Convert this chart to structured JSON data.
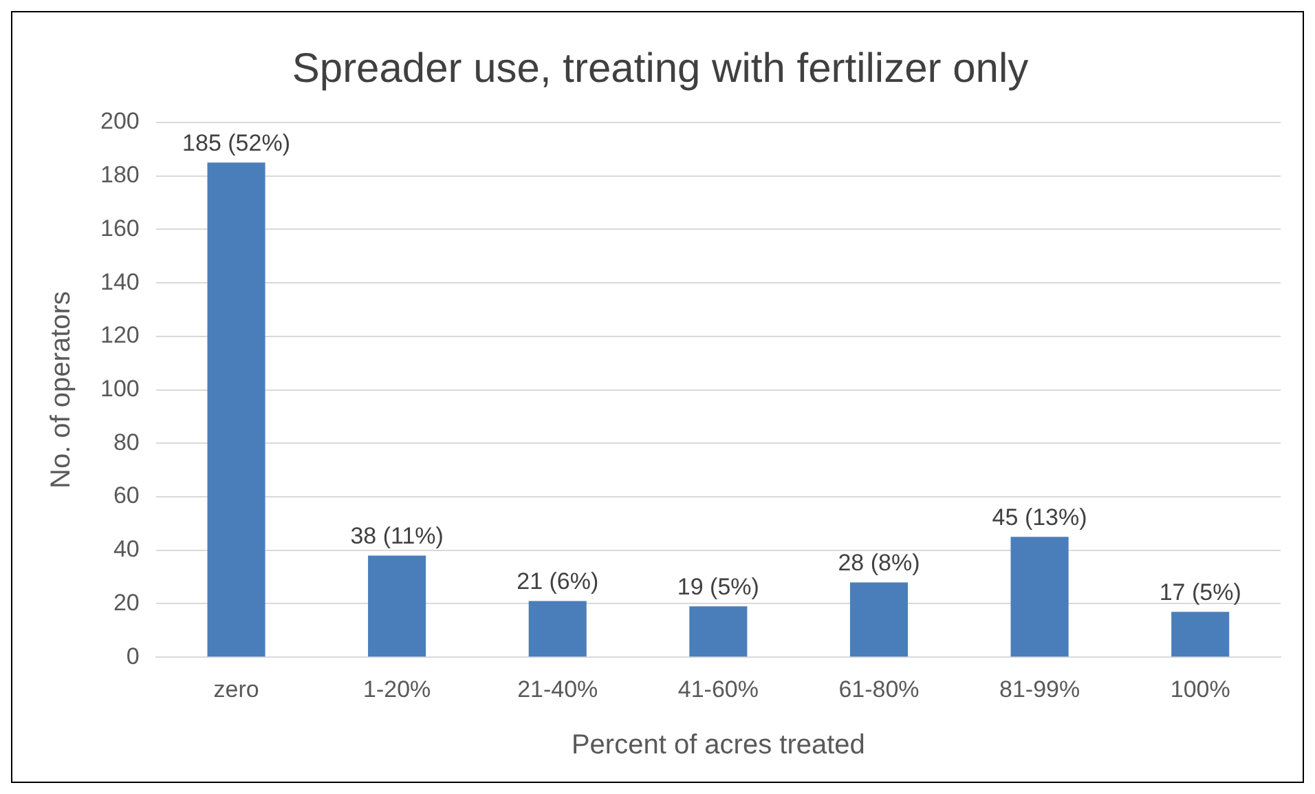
{
  "chart_data": {
    "type": "bar",
    "title": "Spreader use, treating with fertilizer only",
    "xlabel": "Percent of acres treated",
    "ylabel": "No. of operators",
    "categories": [
      "zero",
      "1-20%",
      "21-40%",
      "41-60%",
      "61-80%",
      "81-99%",
      "100%"
    ],
    "values": [
      185,
      38,
      21,
      19,
      28,
      45,
      17
    ],
    "value_labels": [
      "185 (52%)",
      "38 (11%)",
      "21 (6%)",
      "19 (5%)",
      "28 (8%)",
      "45 (13%)",
      "17 (5%)"
    ],
    "color": "#4a7ebb",
    "ylim": [
      0,
      200
    ],
    "yticks": [
      0,
      20,
      40,
      60,
      80,
      100,
      120,
      140,
      160,
      180,
      200
    ],
    "grid": "y",
    "legend": false
  }
}
